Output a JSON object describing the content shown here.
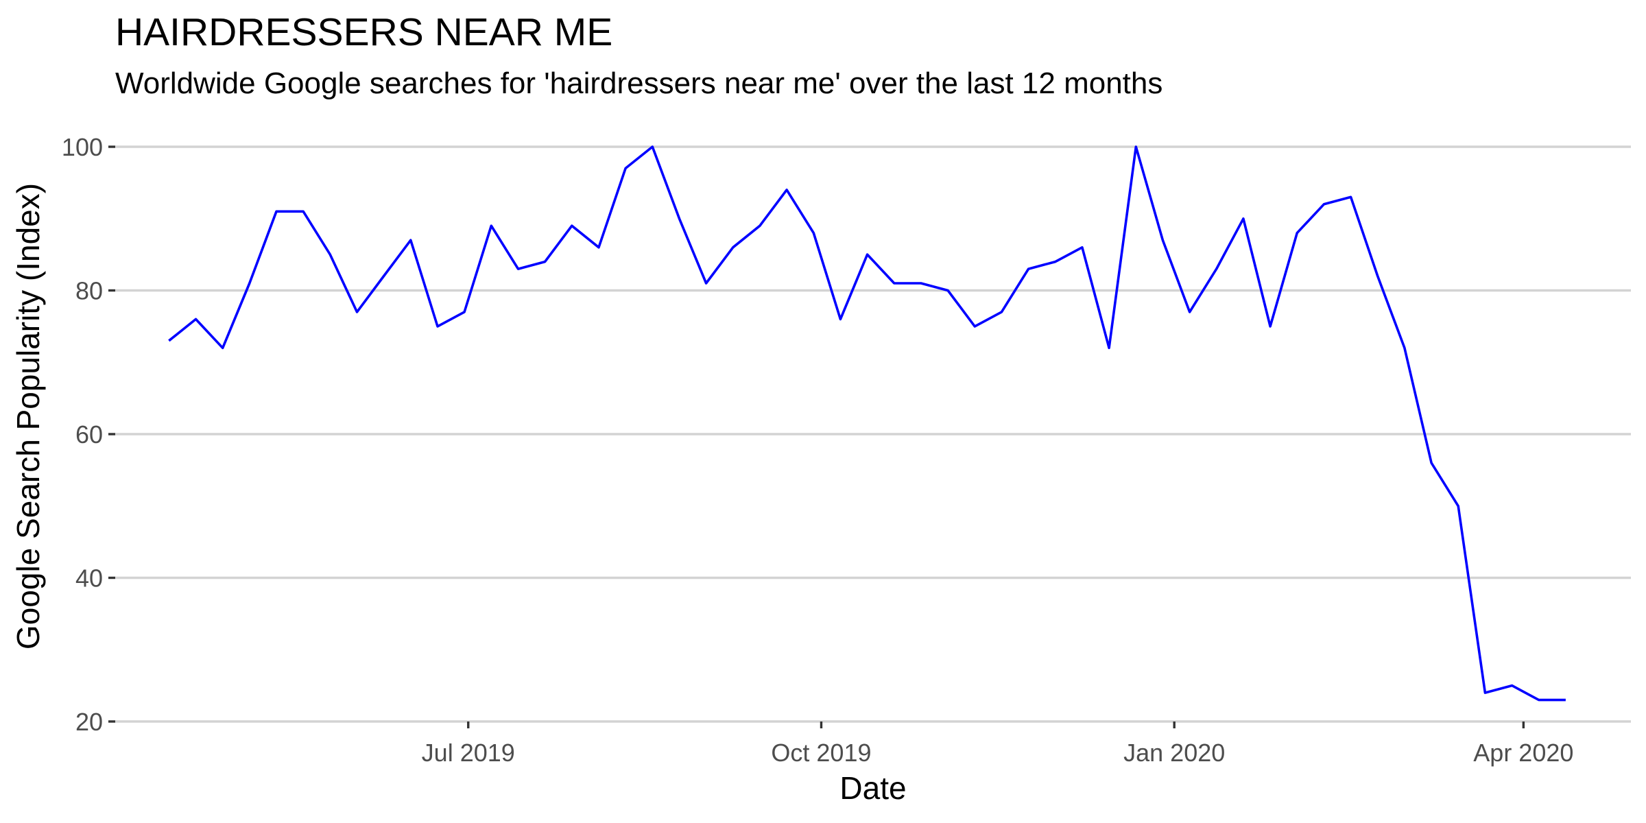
{
  "chart_data": {
    "type": "line",
    "title": "HAIRDRESSERS NEAR ME",
    "subtitle": "Worldwide Google searches for 'hairdressers near me' over the last 12 months",
    "xlabel": "Date",
    "ylabel": "Google Search Popularity (Index)",
    "ylim": [
      20,
      100
    ],
    "y_ticks": [
      20,
      40,
      60,
      80,
      100
    ],
    "x_tick_labels": [
      "Jul 2019",
      "Oct 2019",
      "Jan 2020",
      "Apr 2020"
    ],
    "x_tick_dates": [
      "2019-07-01",
      "2019-10-01",
      "2020-01-01",
      "2020-04-01"
    ],
    "x_range": [
      "2019-03-31",
      "2020-04-29"
    ],
    "grid": true,
    "line_color": "#0000ff",
    "series": [
      {
        "name": "hairdressers near me",
        "x": [
          "2019-04-14",
          "2019-04-21",
          "2019-04-28",
          "2019-05-05",
          "2019-05-12",
          "2019-05-19",
          "2019-05-26",
          "2019-06-02",
          "2019-06-09",
          "2019-06-16",
          "2019-06-23",
          "2019-06-30",
          "2019-07-07",
          "2019-07-14",
          "2019-07-21",
          "2019-07-28",
          "2019-08-04",
          "2019-08-11",
          "2019-08-18",
          "2019-08-25",
          "2019-09-01",
          "2019-09-08",
          "2019-09-15",
          "2019-09-22",
          "2019-09-29",
          "2019-10-06",
          "2019-10-13",
          "2019-10-20",
          "2019-10-27",
          "2019-11-03",
          "2019-11-10",
          "2019-11-17",
          "2019-11-24",
          "2019-12-01",
          "2019-12-08",
          "2019-12-15",
          "2019-12-22",
          "2019-12-29",
          "2020-01-05",
          "2020-01-12",
          "2020-01-19",
          "2020-01-26",
          "2020-02-02",
          "2020-02-09",
          "2020-02-16",
          "2020-02-23",
          "2020-03-01",
          "2020-03-08",
          "2020-03-15",
          "2020-03-22",
          "2020-03-29",
          "2020-04-05",
          "2020-04-12"
        ],
        "values": [
          73,
          76,
          72,
          81,
          91,
          91,
          85,
          77,
          82,
          87,
          75,
          77,
          89,
          83,
          84,
          89,
          86,
          97,
          100,
          90,
          81,
          86,
          89,
          94,
          88,
          76,
          85,
          81,
          81,
          80,
          75,
          77,
          83,
          84,
          86,
          72,
          100,
          87,
          77,
          83,
          90,
          75,
          88,
          92,
          93,
          82,
          72,
          56,
          50,
          24,
          25,
          23,
          23
        ]
      }
    ]
  }
}
